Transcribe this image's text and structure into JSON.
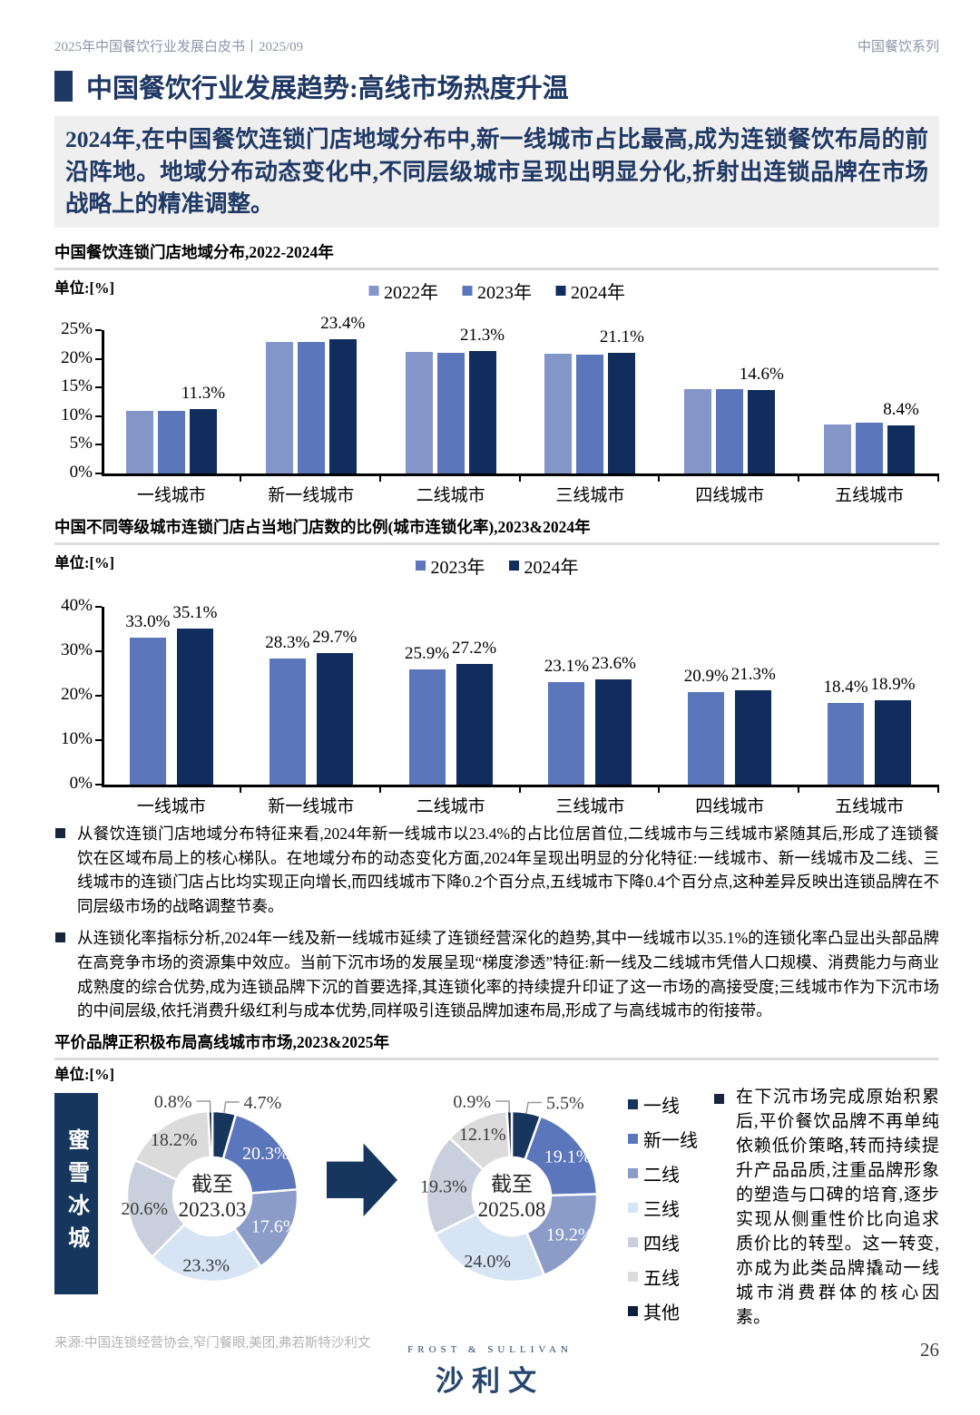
{
  "header": {
    "left": "2025年中国餐饮行业发展白皮书丨2025/09",
    "right": "中国餐饮系列"
  },
  "title": {
    "text": "中国餐饮行业发展趋势:高线市场热度升温"
  },
  "intro": {
    "text": "2024年,在中国餐饮连锁门店地域分布中,新一线城市占比最高,成为连锁餐饮布局的前沿阵地。地域分布动态变化中,不同层级城市呈现出明显分化,折射出连锁品牌在市场战略上的精准调整。"
  },
  "colors": {
    "navy": "#1F3864",
    "intro_bg": "#EFEFEF",
    "divider": "#DCDCDC",
    "header_gray": "#8E96A8",
    "source_gray": "#B3B3B3",
    "palette": [
      "#17365D",
      "#5B76BB",
      "#8B9CC8",
      "#D6E4F3",
      "#C9CFDC",
      "#DBDBDB",
      "#0D203C"
    ]
  },
  "chart_data": [
    {
      "type": "bar",
      "title": "中国餐饮连锁门店地域分布,2022-2024年",
      "unit": "单位:[%]",
      "categories": [
        "一线城市",
        "新一线城市",
        "二线城市",
        "三线城市",
        "四线城市",
        "五线城市"
      ],
      "series": [
        {
          "name": "2022年",
          "color": "#8496C8",
          "values": [
            10.9,
            23.0,
            21.2,
            20.9,
            14.8,
            8.6
          ]
        },
        {
          "name": "2023年",
          "color": "#5B76BB",
          "values": [
            11.0,
            23.0,
            21.1,
            20.7,
            14.8,
            8.8
          ]
        },
        {
          "name": "2024年",
          "color": "#102D5E",
          "values": [
            11.3,
            23.4,
            21.3,
            21.1,
            14.6,
            8.4
          ],
          "labels": [
            "11.3%",
            "23.4%",
            "21.3%",
            "21.1%",
            "14.6%",
            "8.4%"
          ]
        }
      ],
      "ylim": [
        0,
        25
      ],
      "yticks": [
        "0%",
        "5%",
        "10%",
        "15%",
        "20%",
        "25%"
      ],
      "legend_position": "top",
      "grid": false
    },
    {
      "type": "bar",
      "title": "中国不同等级城市连锁门店占当地门店数的比例(城市连锁化率),2023&2024年",
      "unit": "单位:[%]",
      "categories": [
        "一线城市",
        "新一线城市",
        "二线城市",
        "三线城市",
        "四线城市",
        "五线城市"
      ],
      "series": [
        {
          "name": "2023年",
          "color": "#5B76BB",
          "values": [
            33.0,
            28.3,
            25.9,
            23.1,
            20.9,
            18.4
          ],
          "labels": [
            "33.0%",
            "28.3%",
            "25.9%",
            "23.1%",
            "20.9%",
            "18.4%"
          ]
        },
        {
          "name": "2024年",
          "color": "#102D5E",
          "values": [
            35.1,
            29.7,
            27.2,
            23.6,
            21.3,
            18.9
          ],
          "labels": [
            "35.1%",
            "29.7%",
            "27.2%",
            "23.6%",
            "21.3%",
            "18.9%"
          ]
        }
      ],
      "ylim": [
        0,
        40
      ],
      "yticks": [
        "0%",
        "10%",
        "20%",
        "30%",
        "40%"
      ],
      "legend_position": "top",
      "grid": false
    },
    {
      "type": "pie",
      "subtype": "donut",
      "center": [
        "截至",
        "2023.03"
      ],
      "labels": [
        "一线",
        "新一线",
        "二线",
        "三线",
        "四线",
        "五线",
        "其他"
      ],
      "values": [
        4.7,
        20.3,
        17.6,
        23.3,
        20.6,
        18.2,
        0.8
      ],
      "slice_labels": [
        "4.7%",
        "20.3%",
        "17.6%",
        "23.3%",
        "20.6%",
        "18.2%",
        "0.8%"
      ]
    },
    {
      "type": "pie",
      "subtype": "donut",
      "center": [
        "截至",
        "2025.08"
      ],
      "labels": [
        "一线",
        "新一线",
        "二线",
        "三线",
        "四线",
        "五线",
        "其他"
      ],
      "values": [
        5.5,
        19.1,
        19.2,
        24.0,
        19.3,
        12.1,
        0.9
      ],
      "slice_labels": [
        "5.5%",
        "19.1%",
        "19.2%",
        "24.0%",
        "19.3%",
        "12.1%",
        "0.9%"
      ]
    }
  ],
  "bullets": [
    {
      "text": "从餐饮连锁门店地域分布特征来看,2024年新一线城市以23.4%的占比位居首位,二线城市与三线城市紧随其后,形成了连锁餐饮在区域布局上的核心梯队。在地域分布的动态变化方面,2024年呈现出明显的分化特征:一线城市、新一线城市及二线、三线城市的连锁门店占比均实现正向增长,而四线城市下降0.2个百分点,五线城市下降0.4个百分点,这种差异反映出连锁品牌在不同层级市场的战略调整节奏。"
    },
    {
      "text": "从连锁化率指标分析,2024年一线及新一线城市延续了连锁经营深化的趋势,其中一线城市以35.1%的连锁化率凸显出头部品牌在高竞争市场的资源集中效应。当前下沉市场的发展呈现“梯度渗透”特征:新一线及二线城市凭借人口规模、消费能力与商业成熟度的综合优势,成为连锁品牌下沉的首要选择,其连锁化率的持续提升印证了这一市场的高接受度;三线城市作为下沉市场的中间层级,依托消费升级红利与成本优势,同样吸引连锁品牌加速布局,形成了与高线城市的衔接带。"
    }
  ],
  "section3": {
    "title": "平价品牌正积极布局高线城市市场,2023&2025年",
    "unit": "单位:[%]",
    "brand": "蜜雪冰城",
    "legend": [
      "一线",
      "新一线",
      "二线",
      "三线",
      "四线",
      "五线",
      "其他"
    ],
    "note": "在下沉市场完成原始积累后,平价餐饮品牌不再单纯依赖低价策略,转而持续提升产品品质,注重品牌形象的塑造与口碑的培育,逐步实现从侧重性价比向追求质价比的转型。这一转变,亦成为此类品牌撬动一线城市消费群体的核心因素。"
  },
  "footer": {
    "source": "来源:中国连锁经营协会,窄门餐眼,美团,弗若斯特沙利文",
    "logo_top": "FROST & SULLIVAN",
    "logo_main": "沙利文",
    "page": "26"
  }
}
